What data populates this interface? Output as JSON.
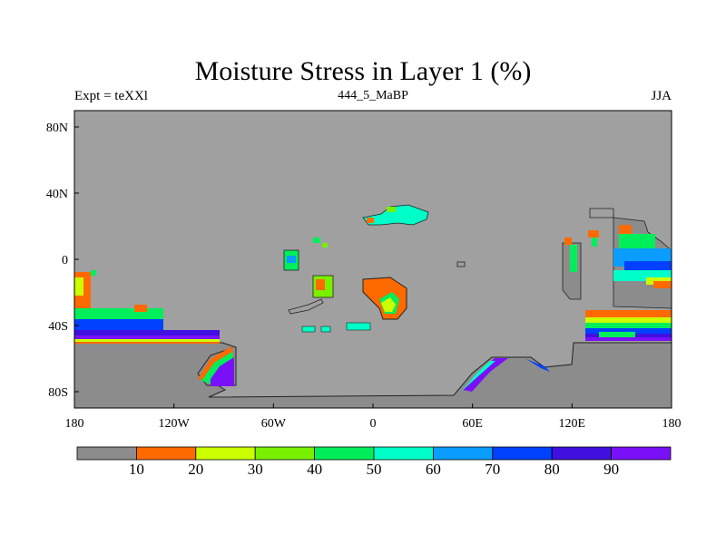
{
  "title": "Moisture Stress in Layer 1 (%)",
  "subtitle_left": "Expt = teXXl",
  "subtitle_center": "444_5_MaBP",
  "subtitle_right": "JJA",
  "lat_ticks": [
    "80N",
    "40N",
    "0",
    "40S",
    "80S"
  ],
  "lon_ticks": [
    "180",
    "120W",
    "60W",
    "0",
    "60E",
    "120E",
    "180"
  ],
  "colorbar": {
    "colors": [
      "#8c8c8c",
      "#ff6a00",
      "#ccff00",
      "#78f000",
      "#00ee5a",
      "#00ffc8",
      "#0a9cff",
      "#0040ff",
      "#4010e0",
      "#7a10f8"
    ],
    "labels": [
      "10",
      "20",
      "30",
      "40",
      "50",
      "60",
      "70",
      "80",
      "90"
    ]
  },
  "colors": {
    "ocean": "#a0a0a0",
    "land_dry": "#8c8c8c",
    "coast": "#222222"
  }
}
